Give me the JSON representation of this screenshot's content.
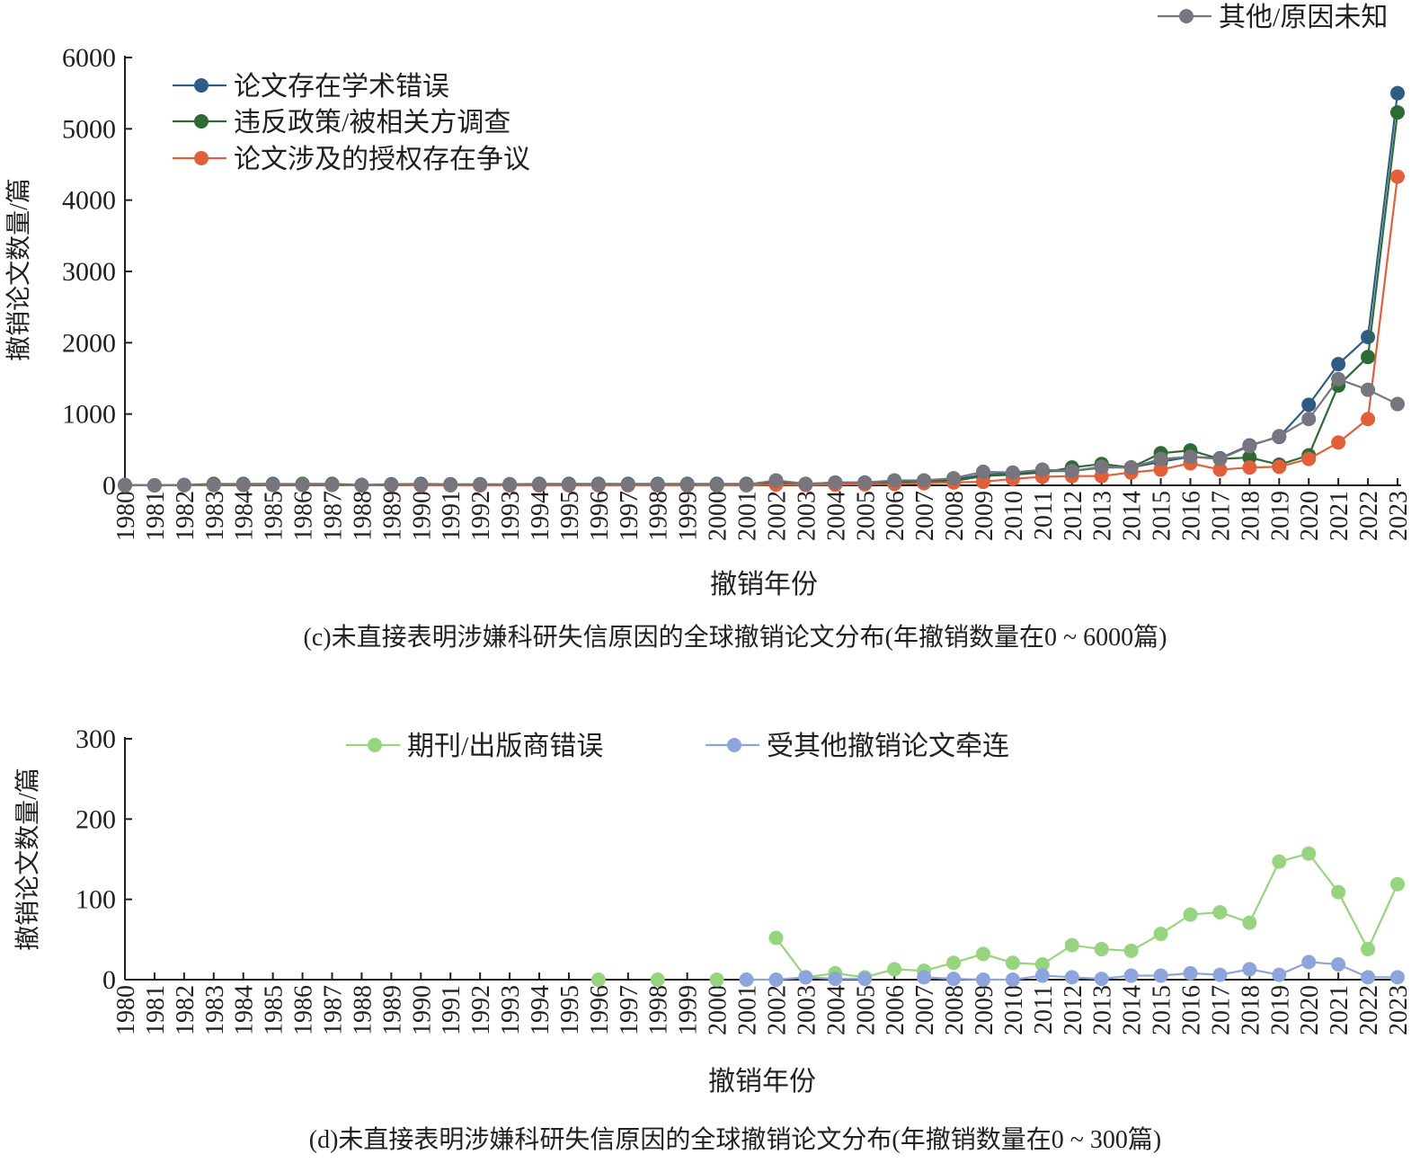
{
  "chart_data": [
    {
      "type": "line",
      "xlabel": "撤销年份",
      "ylabel": "撤销论文数量/篇",
      "caption": "(c)未直接表明涉嫌科研失信原因的全球撤销论文分布(年撤销数量在0 ~ 6000篇)",
      "ylim": [
        0,
        6000
      ],
      "yticks": [
        0,
        1000,
        2000,
        3000,
        4000,
        5000,
        6000
      ],
      "grid": false,
      "legend_placement": "top-left",
      "x": [
        1980,
        1981,
        1982,
        1983,
        1984,
        1985,
        1986,
        1987,
        1988,
        1989,
        1990,
        1991,
        1992,
        1993,
        1994,
        1995,
        1996,
        1997,
        1998,
        1999,
        2000,
        2001,
        2002,
        2003,
        2004,
        2005,
        2006,
        2007,
        2008,
        2009,
        2010,
        2011,
        2012,
        2013,
        2014,
        2015,
        2016,
        2017,
        2018,
        2019,
        2020,
        2021,
        2022,
        2023
      ],
      "series": [
        {
          "name": "论文存在学术错误",
          "color": "#2e5c84",
          "values": [
            5,
            0,
            5,
            15,
            20,
            20,
            15,
            10,
            5,
            15,
            20,
            15,
            15,
            15,
            20,
            20,
            20,
            20,
            20,
            20,
            20,
            20,
            40,
            20,
            40,
            40,
            60,
            60,
            80,
            150,
            170,
            200,
            200,
            250,
            250,
            330,
            400,
            380,
            560,
            680,
            1130,
            1700,
            2080,
            5500
          ]
        },
        {
          "name": "违反政策/被相关方调查",
          "color": "#2e6b34",
          "values": [
            5,
            0,
            5,
            20,
            15,
            15,
            20,
            20,
            5,
            10,
            10,
            10,
            10,
            10,
            15,
            15,
            15,
            15,
            15,
            15,
            15,
            15,
            30,
            15,
            30,
            30,
            40,
            50,
            60,
            130,
            150,
            180,
            250,
            300,
            250,
            450,
            490,
            370,
            390,
            290,
            420,
            1400,
            1800,
            5230
          ]
        },
        {
          "name": "论文涉及的授权存在争议",
          "color": "#e1603a",
          "values": [
            0,
            0,
            0,
            5,
            5,
            5,
            5,
            5,
            0,
            5,
            0,
            0,
            0,
            0,
            0,
            0,
            0,
            0,
            0,
            0,
            0,
            0,
            10,
            5,
            10,
            15,
            20,
            30,
            40,
            50,
            90,
            120,
            130,
            130,
            180,
            220,
            310,
            220,
            250,
            260,
            370,
            600,
            930,
            4330
          ]
        },
        {
          "name": "其他/原因未知",
          "color": "#77767f",
          "values": [
            5,
            0,
            5,
            5,
            10,
            10,
            10,
            10,
            0,
            10,
            10,
            10,
            10,
            10,
            10,
            10,
            10,
            10,
            10,
            10,
            10,
            10,
            70,
            20,
            40,
            40,
            70,
            70,
            100,
            190,
            180,
            220,
            200,
            260,
            250,
            370,
            400,
            370,
            550,
            690,
            930,
            1490,
            1340,
            1140
          ]
        }
      ]
    },
    {
      "type": "line",
      "xlabel": "撤销年份",
      "ylabel": "撤销论文数量/篇",
      "caption": "(d)未直接表明涉嫌科研失信原因的全球撤销论文分布(年撤销数量在0 ~ 300篇)",
      "ylim": [
        0,
        300
      ],
      "yticks": [
        0,
        100,
        200,
        300
      ],
      "grid": false,
      "legend_placement": "top",
      "x": [
        1980,
        1981,
        1982,
        1983,
        1984,
        1985,
        1986,
        1987,
        1988,
        1989,
        1990,
        1991,
        1992,
        1993,
        1994,
        1995,
        1996,
        1997,
        1998,
        1999,
        2000,
        2001,
        2002,
        2003,
        2004,
        2005,
        2006,
        2007,
        2008,
        2009,
        2010,
        2011,
        2012,
        2013,
        2014,
        2015,
        2016,
        2017,
        2018,
        2019,
        2020,
        2021,
        2022,
        2023
      ],
      "series": [
        {
          "name": "期刊/出版商错误",
          "color": "#97d47f",
          "values": [
            null,
            null,
            null,
            null,
            null,
            null,
            null,
            null,
            null,
            null,
            null,
            null,
            null,
            null,
            null,
            null,
            0,
            null,
            0,
            null,
            0,
            null,
            52,
            3,
            8,
            3,
            13,
            11,
            21,
            32,
            21,
            19,
            43,
            38,
            36,
            57,
            81,
            84,
            71,
            147,
            157,
            109,
            38,
            119
          ]
        },
        {
          "name": "受其他撤销论文牵连",
          "color": "#8ea4dc",
          "values": [
            null,
            null,
            null,
            null,
            null,
            null,
            null,
            null,
            null,
            null,
            null,
            null,
            null,
            null,
            null,
            null,
            null,
            null,
            null,
            null,
            null,
            0,
            0,
            3,
            1,
            1,
            null,
            3,
            1,
            0,
            0,
            5,
            3,
            1,
            5,
            5,
            8,
            6,
            13,
            6,
            22,
            19,
            3,
            3
          ]
        }
      ]
    }
  ]
}
